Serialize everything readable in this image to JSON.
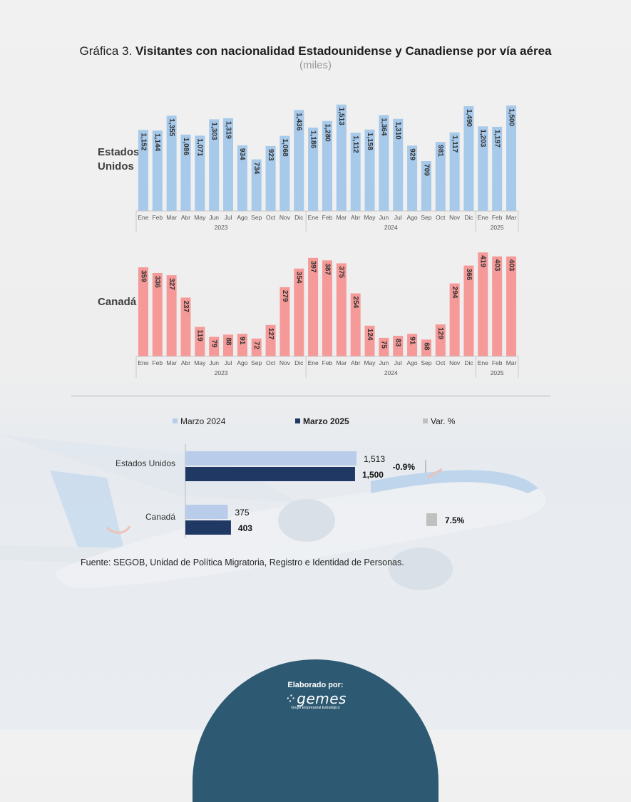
{
  "title": {
    "prefix": "Gráfica 3.",
    "main": "Visitantes con nacionalidad Estadounidense y Canadiense por vía aérea",
    "unit": "(miles)"
  },
  "rows": [
    {
      "label_line1": "Estados",
      "label_line2": "Unidos"
    },
    {
      "label_line1": "Canadá",
      "label_line2": ""
    }
  ],
  "chart_data": [
    {
      "type": "bar",
      "name": "Estados Unidos",
      "categories": [
        "Ene",
        "Feb",
        "Mar",
        "Abr",
        "May",
        "Jun",
        "Jul",
        "Ago",
        "Sep",
        "Oct",
        "Nov",
        "Dic",
        "Ene",
        "Feb",
        "Mar",
        "Abr",
        "May",
        "Jun",
        "Jul",
        "Ago",
        "Sep",
        "Oct",
        "Nov",
        "Dic",
        "Ene",
        "Feb",
        "Mar"
      ],
      "years": [
        {
          "label": "2023",
          "count": 12
        },
        {
          "label": "2024",
          "count": 12
        },
        {
          "label": "2025",
          "count": 3
        }
      ],
      "values": [
        1152,
        1144,
        1355,
        1086,
        1071,
        1303,
        1319,
        934,
        734,
        923,
        1068,
        1436,
        1186,
        1280,
        1513,
        1112,
        1158,
        1364,
        1310,
        929,
        709,
        981,
        1117,
        1490,
        1203,
        1197,
        1500
      ],
      "color": "#a7c9ea"
    },
    {
      "type": "bar",
      "name": "Canadá",
      "categories": [
        "Ene",
        "Feb",
        "Mar",
        "Abr",
        "May",
        "Jun",
        "Jul",
        "Ago",
        "Sep",
        "Oct",
        "Nov",
        "Dic",
        "Ene",
        "Feb",
        "Mar",
        "Abr",
        "May",
        "Jun",
        "Jul",
        "Ago",
        "Sep",
        "Oct",
        "Nov",
        "Dic",
        "Ene",
        "Feb",
        "Mar"
      ],
      "years": [
        {
          "label": "2023",
          "count": 12
        },
        {
          "label": "2024",
          "count": 12
        },
        {
          "label": "2025",
          "count": 3
        }
      ],
      "values": [
        359,
        336,
        327,
        237,
        119,
        79,
        88,
        91,
        72,
        127,
        279,
        354,
        397,
        387,
        375,
        254,
        124,
        75,
        83,
        91,
        68,
        129,
        294,
        366,
        419,
        403,
        403
      ],
      "color": "#f59a98"
    },
    {
      "type": "bar",
      "orientation": "horizontal",
      "legend": [
        "Marzo 2024",
        "Marzo 2025",
        "Var. %"
      ],
      "categories": [
        "Estados Unidos",
        "Canadá"
      ],
      "series": [
        {
          "name": "Marzo 2024",
          "values": [
            1513,
            375
          ],
          "labels": [
            "1,513",
            "375"
          ],
          "color": "#b9cdeb"
        },
        {
          "name": "Marzo 2025",
          "values": [
            1500,
            403
          ],
          "labels": [
            "1,500",
            "403"
          ],
          "color": "#1f3864"
        }
      ],
      "variation": {
        "name": "Var. %",
        "values": [
          -0.9,
          7.5
        ],
        "labels": [
          "-0.9%",
          "7.5%"
        ],
        "color": "#c0c0c0"
      }
    }
  ],
  "source": "Fuente: SEGOB, Unidad de Política Migratoria, Registro e Identidad de Personas.",
  "footer": {
    "label": "Elaborado por:",
    "logo": "gemes",
    "tagline": "Grupo Empresarial Estratégico"
  }
}
